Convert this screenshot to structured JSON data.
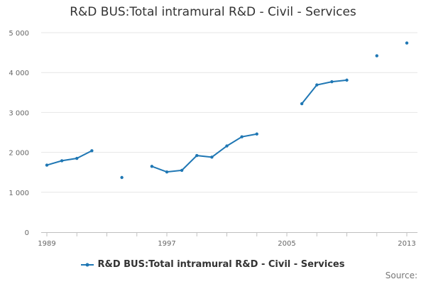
{
  "chart_data": {
    "type": "line",
    "title": "R&D BUS:Total intramural R&D - Civil - Services",
    "xlabel": "",
    "ylabel": "",
    "x_ticks": [
      "1989",
      "1997",
      "2005",
      "2013"
    ],
    "y_ticks": [
      "0",
      "1 000",
      "2 000",
      "3 000",
      "4 000",
      "5 000"
    ],
    "xlim": [
      1989,
      2013
    ],
    "ylim": [
      0,
      5000
    ],
    "grid": true,
    "legend_position": "bottom",
    "series": [
      {
        "name": "R&D BUS:Total intramural R&D - Civil - Services",
        "color": "#1f77b4",
        "points": [
          {
            "x": 1989,
            "y": 1680
          },
          {
            "x": 1990,
            "y": 1790
          },
          {
            "x": 1991,
            "y": 1850
          },
          {
            "x": 1992,
            "y": 2040
          },
          {
            "x": 1994,
            "y": 1370
          },
          {
            "x": 1996,
            "y": 1650
          },
          {
            "x": 1997,
            "y": 1510
          },
          {
            "x": 1998,
            "y": 1550
          },
          {
            "x": 1999,
            "y": 1920
          },
          {
            "x": 2000,
            "y": 1880
          },
          {
            "x": 2001,
            "y": 2160
          },
          {
            "x": 2002,
            "y": 2390
          },
          {
            "x": 2003,
            "y": 2460
          },
          {
            "x": 2006,
            "y": 3220
          },
          {
            "x": 2007,
            "y": 3690
          },
          {
            "x": 2008,
            "y": 3770
          },
          {
            "x": 2009,
            "y": 3810
          },
          {
            "x": 2011,
            "y": 4420
          },
          {
            "x": 2013,
            "y": 4740
          }
        ]
      }
    ]
  },
  "source_label": "Source:"
}
